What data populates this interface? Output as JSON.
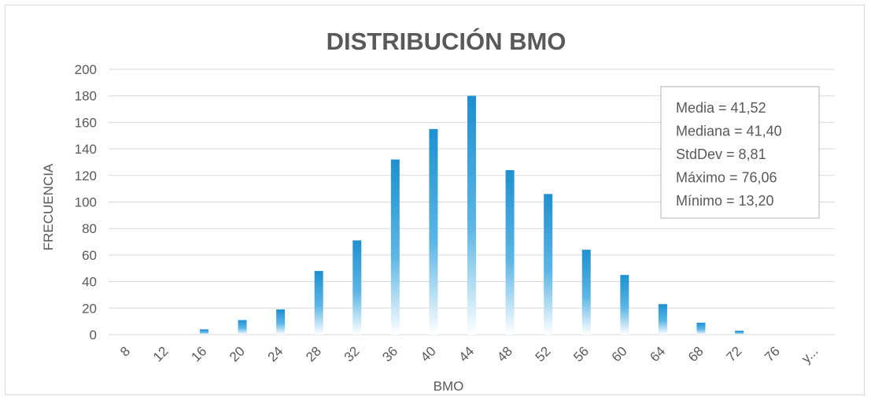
{
  "chart_data": {
    "type": "bar",
    "title": "DISTRIBUCIÓN BMO",
    "xlabel": "BMO",
    "ylabel": "FRECUENCIA",
    "ylim": [
      0,
      200
    ],
    "yticks": [
      0,
      20,
      40,
      60,
      80,
      100,
      120,
      140,
      160,
      180,
      200
    ],
    "grid": true,
    "categories": [
      "8",
      "12",
      "16",
      "20",
      "24",
      "28",
      "32",
      "36",
      "40",
      "44",
      "48",
      "52",
      "56",
      "60",
      "64",
      "68",
      "72",
      "76",
      "y..."
    ],
    "values": [
      0,
      0,
      4,
      11,
      19,
      48,
      71,
      132,
      155,
      180,
      124,
      106,
      64,
      45,
      23,
      9,
      3,
      0,
      0
    ],
    "colors": {
      "bar_top": "#1e90d0",
      "bar_bottom": "#ffffff",
      "grid": "#d9d9d9",
      "text": "#595959",
      "title": "#595959"
    },
    "stats_box": {
      "lines": [
        "Media = 41,52",
        "Mediana = 41,40",
        "StdDev = 8,81",
        "Máximo = 76,06",
        "Mínimo = 13,20"
      ],
      "placement": "top-right"
    }
  }
}
